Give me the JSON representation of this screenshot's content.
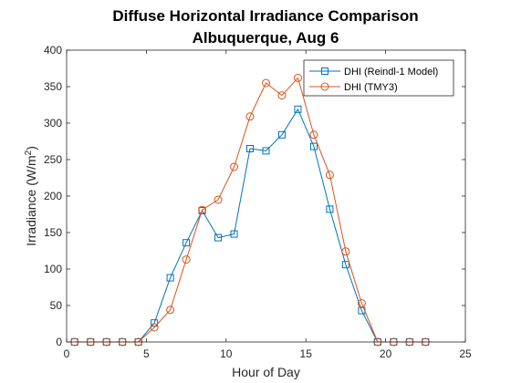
{
  "chart_data": {
    "type": "line",
    "title": "Diffuse Horizontal Irradiance Comparison",
    "subtitle": "Albuquerque, Aug 6",
    "xlabel": "Hour of Day",
    "ylabel_main": "Irradiance (W/m",
    "ylabel_sup": "2",
    "ylabel_close": ")",
    "xlim": [
      0,
      25
    ],
    "ylim": [
      0,
      400
    ],
    "xticks": [
      0,
      5,
      10,
      15,
      20,
      25
    ],
    "yticks": [
      0,
      50,
      100,
      150,
      200,
      250,
      300,
      350,
      400
    ],
    "grid": false,
    "legend_position": "top-right",
    "x": [
      0.5,
      1.5,
      2.5,
      3.5,
      4.5,
      5.5,
      6.5,
      7.5,
      8.5,
      9.5,
      10.5,
      11.5,
      12.5,
      13.5,
      14.5,
      15.5,
      16.5,
      17.5,
      18.5,
      19.5,
      20.5,
      21.5,
      22.5
    ],
    "series": [
      {
        "name": "DHI (Reindl-1 Model)",
        "color": "#0072BD",
        "marker": "square",
        "values": [
          0,
          0,
          0,
          0,
          0,
          26,
          88,
          136,
          180,
          143,
          148,
          265,
          262,
          284,
          319,
          268,
          182,
          106,
          43,
          0,
          0,
          0,
          0
        ]
      },
      {
        "name": "DHI (TMY3)",
        "color": "#D95319",
        "marker": "circle",
        "values": [
          0,
          0,
          0,
          0,
          0,
          20,
          44,
          113,
          181,
          195,
          240,
          309,
          355,
          338,
          362,
          284,
          229,
          124,
          53,
          0,
          0,
          0,
          0
        ]
      }
    ]
  }
}
